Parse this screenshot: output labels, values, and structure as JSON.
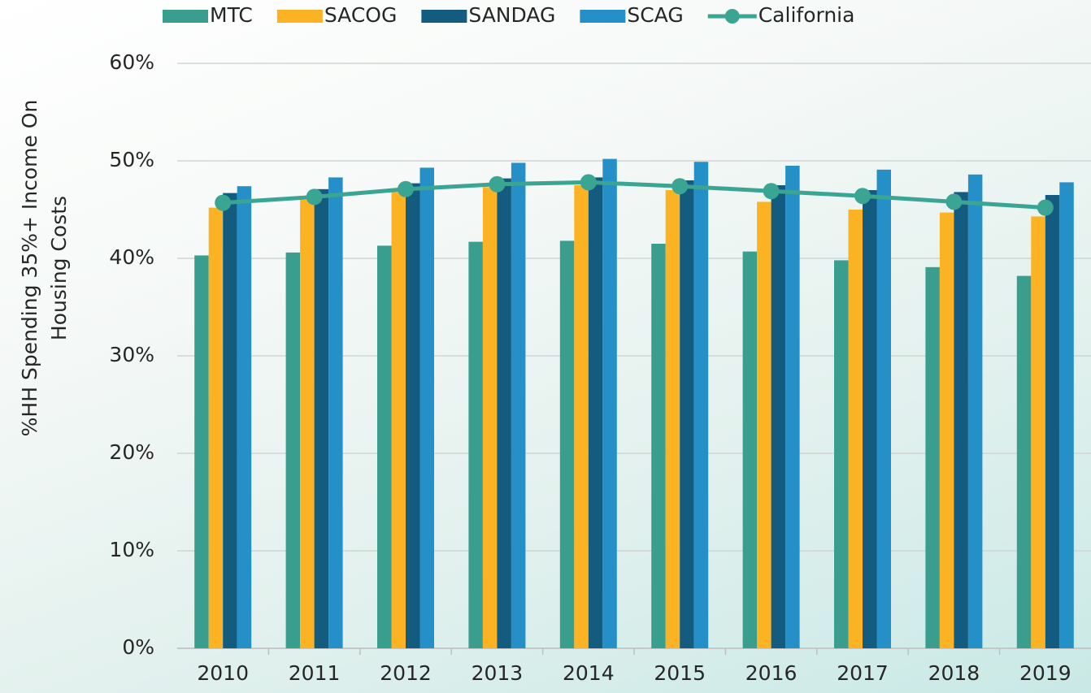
{
  "chart_data": {
    "type": "bar",
    "y_label": [
      "%HH Spending 35%+ Income On",
      "Housing Costs"
    ],
    "categories": [
      "2010",
      "2011",
      "2012",
      "2013",
      "2014",
      "2015",
      "2016",
      "2017",
      "2018",
      "2019"
    ],
    "series": [
      {
        "name": "MTC",
        "color": "#3a9e8f",
        "values": [
          40.3,
          40.6,
          41.3,
          41.7,
          41.8,
          41.5,
          40.7,
          39.8,
          39.1,
          38.2
        ]
      },
      {
        "name": "SACOG",
        "color": "#fbb324",
        "values": [
          45.2,
          46.0,
          46.8,
          47.3,
          47.5,
          47.0,
          45.8,
          45.0,
          44.7,
          44.3
        ]
      },
      {
        "name": "SANDAG",
        "color": "#135b7f",
        "values": [
          46.7,
          47.1,
          47.7,
          48.2,
          48.3,
          48.0,
          47.5,
          47.0,
          46.8,
          46.5
        ]
      },
      {
        "name": "SCAG",
        "color": "#2590c8",
        "values": [
          47.4,
          48.3,
          49.3,
          49.8,
          50.2,
          49.9,
          49.5,
          49.1,
          48.6,
          47.8
        ]
      },
      {
        "name": "California",
        "color": "#3aa592",
        "type": "line",
        "values": [
          45.7,
          46.3,
          47.1,
          47.6,
          47.8,
          47.4,
          46.9,
          46.4,
          45.8,
          45.2
        ]
      }
    ],
    "ylim": [
      0,
      60
    ],
    "yticks": [
      {
        "value": 0,
        "label": "0%"
      },
      {
        "value": 10,
        "label": "10%"
      },
      {
        "value": 20,
        "label": "20%"
      },
      {
        "value": 30,
        "label": "30%"
      },
      {
        "value": 40,
        "label": "40%"
      },
      {
        "value": 50,
        "label": "50%"
      },
      {
        "value": 60,
        "label": "60%"
      }
    ],
    "grid": true,
    "legend": "top"
  }
}
